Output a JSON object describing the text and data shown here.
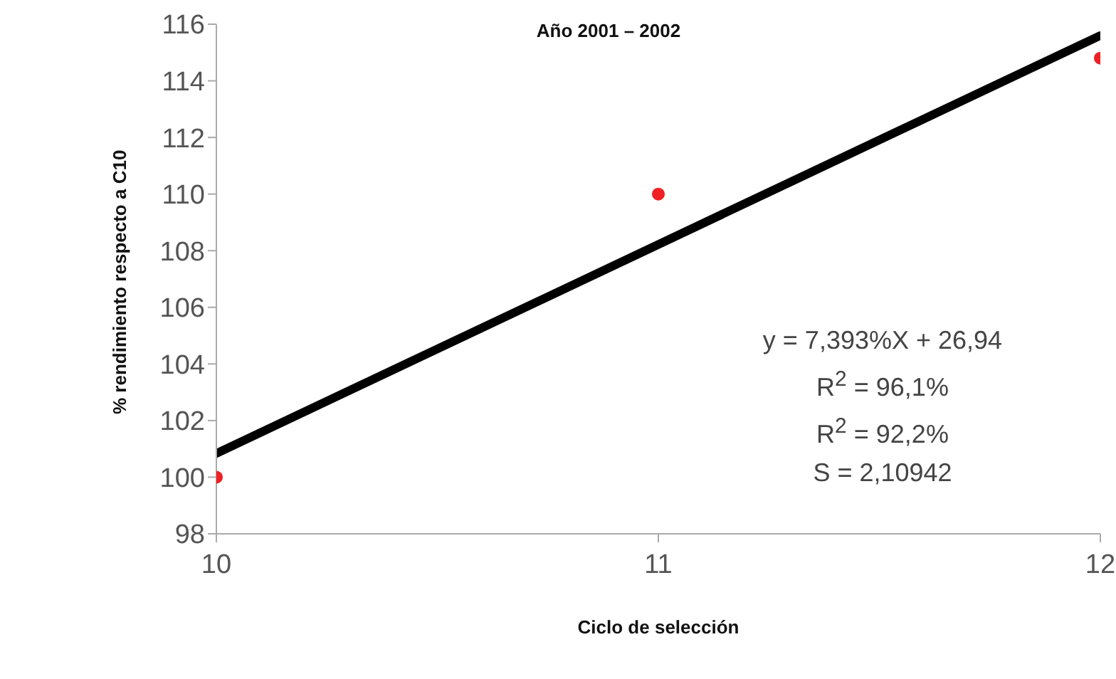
{
  "chart_data": {
    "type": "scatter",
    "title": "Año 2001 – 2002",
    "xlabel": "Ciclo de selección",
    "ylabel": "% rendimiento respecto a  C10",
    "x": [
      10,
      11,
      12
    ],
    "series": [
      {
        "color": "#ee2024",
        "values": [
          100,
          110,
          114.8
        ],
        "marker": "circle"
      },
      {
        "type": "line",
        "color": "#000000",
        "x": [
          10,
          12
        ],
        "values": [
          100.84,
          115.6
        ],
        "marker": "none",
        "line_style": "solid"
      }
    ],
    "xlim": [
      10,
      12
    ],
    "xticks": [
      10,
      11,
      12
    ],
    "ylim": [
      98,
      116
    ],
    "yticks": [
      98,
      100,
      102,
      104,
      106,
      108,
      110,
      112,
      114,
      116
    ],
    "grid": false,
    "annotations": [
      "y = 7,393%X + 26,94",
      "R$^{2}$ = 96,1%",
      "R$^{2}$ = 92,2%",
      "S = 2,10942"
    ]
  }
}
